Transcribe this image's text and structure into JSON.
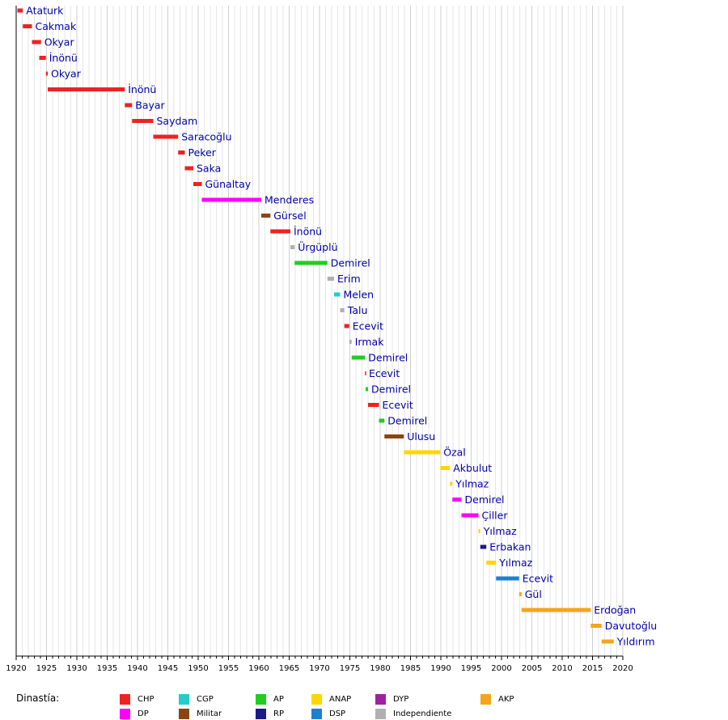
{
  "chart_data": {
    "type": "bar",
    "orientation": "horizontal-timeline",
    "title": "",
    "xlabel": "",
    "ylabel": "",
    "xlim": [
      1920,
      2020
    ],
    "x_ticks": [
      "1920",
      "1925",
      "1930",
      "1935",
      "1940",
      "1945",
      "1950",
      "1955",
      "1960",
      "1965",
      "1970",
      "1975",
      "1980",
      "1985",
      "1990",
      "1995",
      "2000",
      "2005",
      "2010",
      "2015",
      "2020"
    ],
    "grid": "vertical, every year",
    "series": [
      {
        "label": "Ataturk",
        "start": 1920.2,
        "end": 1921.1,
        "party": "CHP"
      },
      {
        "label": "Cakmak",
        "start": 1921.1,
        "end": 1922.6,
        "party": "CHP"
      },
      {
        "label": "Okyar",
        "start": 1922.6,
        "end": 1924.1,
        "party": "CHP"
      },
      {
        "label": "İnönü",
        "start": 1923.8,
        "end": 1924.9,
        "party": "CHP"
      },
      {
        "label": "Okyar",
        "start": 1924.9,
        "end": 1925.2,
        "party": "CHP"
      },
      {
        "label": "İnönü",
        "start": 1925.2,
        "end": 1937.9,
        "party": "CHP"
      },
      {
        "label": "Bayar",
        "start": 1937.9,
        "end": 1939.1,
        "party": "CHP"
      },
      {
        "label": "Saydam",
        "start": 1939.1,
        "end": 1942.6,
        "party": "CHP"
      },
      {
        "label": "Saracoğlu",
        "start": 1942.6,
        "end": 1946.7,
        "party": "CHP"
      },
      {
        "label": "Peker",
        "start": 1946.7,
        "end": 1947.8,
        "party": "CHP"
      },
      {
        "label": "Saka",
        "start": 1947.8,
        "end": 1949.2,
        "party": "CHP"
      },
      {
        "label": "Günaltay",
        "start": 1949.2,
        "end": 1950.6,
        "party": "CHP"
      },
      {
        "label": "Menderes",
        "start": 1950.6,
        "end": 1960.4,
        "party": "DP"
      },
      {
        "label": "Gürsel",
        "start": 1960.4,
        "end": 1961.9,
        "party": "Militar"
      },
      {
        "label": "İnönü",
        "start": 1961.9,
        "end": 1965.2,
        "party": "CHP"
      },
      {
        "label": "Ürgüplü",
        "start": 1965.2,
        "end": 1965.9,
        "party": "Independiente"
      },
      {
        "label": "Demirel",
        "start": 1965.9,
        "end": 1971.3,
        "party": "AP"
      },
      {
        "label": "Erim",
        "start": 1971.3,
        "end": 1972.4,
        "party": "Independiente"
      },
      {
        "label": "Melen",
        "start": 1972.4,
        "end": 1973.4,
        "party": "CGP"
      },
      {
        "label": "Talu",
        "start": 1973.4,
        "end": 1974.1,
        "party": "Independiente"
      },
      {
        "label": "Ecevit",
        "start": 1974.1,
        "end": 1974.9,
        "party": "CHP"
      },
      {
        "label": "Irmak",
        "start": 1974.9,
        "end": 1975.3,
        "party": "Independiente"
      },
      {
        "label": "Demirel",
        "start": 1975.3,
        "end": 1977.5,
        "party": "AP"
      },
      {
        "label": "Ecevit",
        "start": 1977.5,
        "end": 1977.6,
        "party": "CHP"
      },
      {
        "label": "Demirel",
        "start": 1977.6,
        "end": 1978.0,
        "party": "AP"
      },
      {
        "label": "Ecevit",
        "start": 1978.0,
        "end": 1979.8,
        "party": "CHP"
      },
      {
        "label": "Demirel",
        "start": 1979.8,
        "end": 1980.7,
        "party": "AP"
      },
      {
        "label": "Ulusu",
        "start": 1980.7,
        "end": 1983.9,
        "party": "Militar"
      },
      {
        "label": "Özal",
        "start": 1983.9,
        "end": 1989.9,
        "party": "ANAP"
      },
      {
        "label": "Akbulut",
        "start": 1989.9,
        "end": 1991.5,
        "party": "ANAP"
      },
      {
        "label": "Yılmaz",
        "start": 1991.5,
        "end": 1991.9,
        "party": "ANAP"
      },
      {
        "label": "Demirel",
        "start": 1991.9,
        "end": 1993.4,
        "party": "DP"
      },
      {
        "label": "Çiller",
        "start": 1993.4,
        "end": 1996.2,
        "party": "DP"
      },
      {
        "label": "Yılmaz",
        "start": 1996.2,
        "end": 1996.5,
        "party": "ANAP"
      },
      {
        "label": "Erbakan",
        "start": 1996.5,
        "end": 1997.5,
        "party": "RP"
      },
      {
        "label": "Yılmaz",
        "start": 1997.5,
        "end": 1999.1,
        "party": "ANAP"
      },
      {
        "label": "Ecevit",
        "start": 1999.1,
        "end": 2002.9,
        "party": "DSP"
      },
      {
        "label": "Gül",
        "start": 2002.9,
        "end": 2003.3,
        "party": "AKP"
      },
      {
        "label": "Erdoğan",
        "start": 2003.3,
        "end": 2014.7,
        "party": "AKP"
      },
      {
        "label": "Davutoğlu",
        "start": 2014.7,
        "end": 2016.5,
        "party": "AKP"
      },
      {
        "label": "Yıldırım",
        "start": 2016.5,
        "end": 2018.5,
        "party": "AKP"
      }
    ],
    "legend": {
      "title": "Dinastía:",
      "placement": "bottom",
      "entries": [
        {
          "name": "CHP",
          "color": "#ee2222"
        },
        {
          "name": "DP",
          "color": "#ff00ff"
        },
        {
          "name": "CGP",
          "color": "#22cccc"
        },
        {
          "name": "Militar",
          "color": "#8b4513"
        },
        {
          "name": "AP",
          "color": "#22cc22"
        },
        {
          "name": "RP",
          "color": "#1a1a8c"
        },
        {
          "name": "ANAP",
          "color": "#ffd700"
        },
        {
          "name": "DSP",
          "color": "#1e7fd0"
        },
        {
          "name": "DYP",
          "color": "#a020a0"
        },
        {
          "name": "Independiente",
          "color": "#b0b0b0"
        },
        {
          "name": "AKP",
          "color": "#f4a51c"
        }
      ]
    }
  }
}
